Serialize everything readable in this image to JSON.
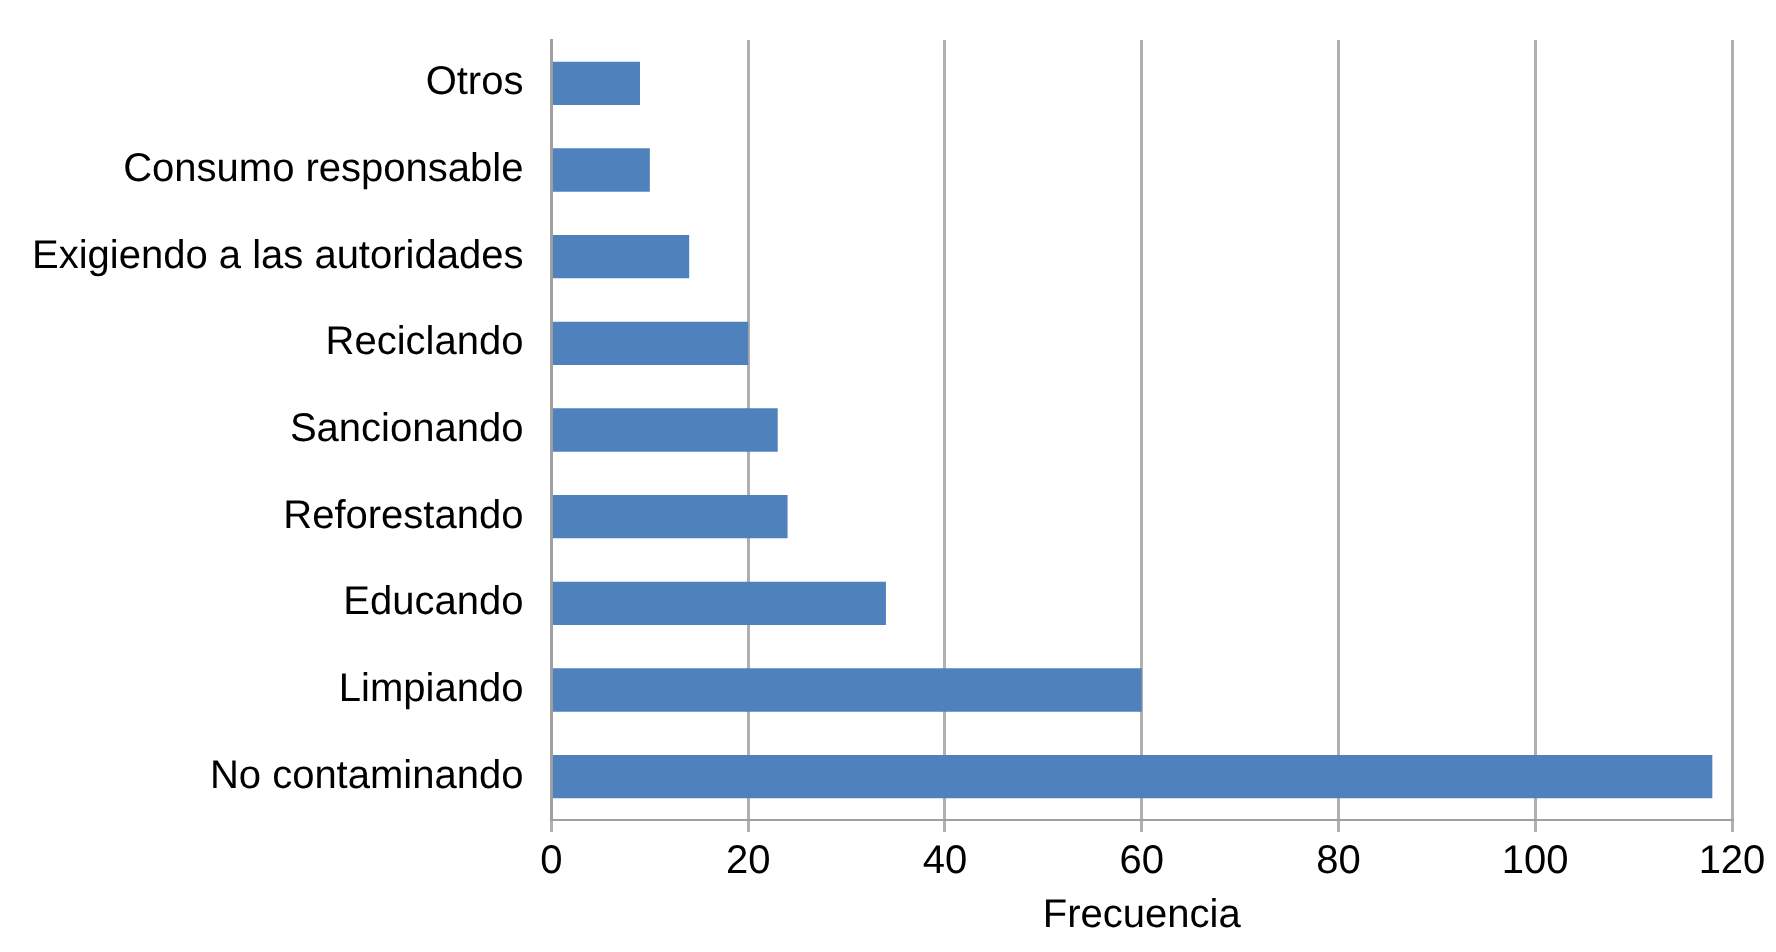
{
  "chart_data": {
    "type": "bar",
    "orientation": "horizontal",
    "xlabel": "Frecuencia",
    "categories": [
      "Otros",
      "Consumo responsable",
      "Exigiendo a las autoridades",
      "Reciclando",
      "Sancionando",
      "Reforestando",
      "Educando",
      "Limpiando",
      "No contaminando"
    ],
    "values": [
      9,
      10,
      14,
      20,
      23,
      24,
      34,
      60,
      118
    ],
    "color": "#4f81bd",
    "xlim": [
      0,
      120
    ],
    "xticks": [
      0,
      20,
      40,
      60,
      80,
      100,
      120
    ],
    "grid": "x",
    "legend": false
  }
}
